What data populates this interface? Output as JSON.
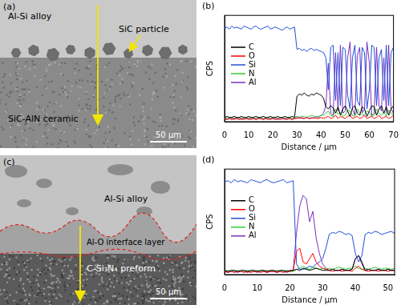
{
  "images": [
    {
      "label": "(a)",
      "matrix": "Al-Si alloy",
      "particle": "SiC particle",
      "substrate": "SiC-AlN ceramic",
      "scale_bar": "50 μm"
    },
    {
      "label": "(c)",
      "matrix": "Al-Si alloy",
      "interface": "Al-O interface layer",
      "substrate": "C-Si₃N₄ preform",
      "scale_bar": "50 μm"
    }
  ],
  "chart_data": [
    {
      "type": "line",
      "title": "(b)",
      "x_label": "Distance / μm",
      "y_label": "CPS",
      "xlim": [
        0,
        70
      ],
      "xticks": [
        0,
        10,
        20,
        30,
        40,
        50,
        60,
        70
      ],
      "ylim": [
        0,
        100
      ],
      "grid": false,
      "legend": "left",
      "tick_labels": "x",
      "x": [
        0,
        1,
        2,
        3,
        4,
        5,
        6,
        7,
        8,
        9,
        10,
        11,
        12,
        13,
        14,
        15,
        16,
        17,
        18,
        19,
        20,
        21,
        22,
        23,
        24,
        25,
        26,
        27,
        28,
        29,
        30,
        31,
        32,
        33,
        34,
        35,
        36,
        37,
        38,
        39,
        40,
        41,
        42,
        43,
        44,
        45,
        46,
        47,
        48,
        49,
        50,
        51,
        52,
        53,
        54,
        55,
        56,
        57,
        58,
        59,
        60,
        61,
        62,
        63,
        64,
        65,
        66,
        67,
        68,
        69,
        70
      ],
      "series": [
        {
          "name": "C",
          "color": "#000000",
          "values": [
            4,
            5,
            4,
            4,
            5,
            4,
            4,
            5,
            4,
            4,
            5,
            4,
            4,
            5,
            4,
            4,
            5,
            4,
            4,
            5,
            4,
            4,
            5,
            4,
            4,
            5,
            4,
            4,
            5,
            4,
            24,
            26,
            25,
            27,
            25,
            24,
            26,
            25,
            27,
            26,
            25,
            22,
            14,
            12,
            15,
            13,
            8,
            14,
            6,
            12,
            15,
            10,
            5,
            13,
            15,
            8,
            6,
            14,
            12,
            5,
            10,
            15,
            14,
            6,
            12,
            15,
            8,
            14,
            6,
            12,
            15
          ]
        },
        {
          "name": "O",
          "color": "#ff0000",
          "values": [
            3,
            2,
            3,
            2,
            3,
            3,
            2,
            3,
            2,
            3,
            3,
            2,
            3,
            2,
            3,
            3,
            2,
            3,
            2,
            3,
            3,
            2,
            3,
            2,
            3,
            3,
            2,
            3,
            2,
            3,
            3,
            4,
            3,
            3,
            4,
            3,
            3,
            4,
            3,
            3,
            4,
            3,
            4,
            5,
            3,
            4,
            6,
            3,
            5,
            4,
            3,
            5,
            6,
            3,
            4,
            5,
            3,
            4,
            6,
            3,
            4,
            5,
            3,
            4,
            6,
            3,
            4,
            5,
            3,
            4,
            6
          ]
        },
        {
          "name": "Si",
          "color": "#1f4fd8",
          "values": [
            88,
            89,
            87,
            90,
            88,
            89,
            88,
            87,
            90,
            89,
            88,
            87,
            89,
            90,
            88,
            87,
            88,
            89,
            90,
            87,
            88,
            89,
            88,
            87,
            86,
            88,
            89,
            87,
            88,
            89,
            68,
            69,
            67,
            68,
            66,
            68,
            69,
            67,
            68,
            67,
            66,
            65,
            60,
            30,
            70,
            72,
            20,
            65,
            15,
            70,
            68,
            25,
            12,
            60,
            72,
            20,
            15,
            70,
            65,
            12,
            30,
            72,
            70,
            15,
            60,
            68,
            20,
            72,
            15,
            65,
            70
          ]
        },
        {
          "name": "N",
          "color": "#33cc33",
          "values": [
            4,
            3,
            4,
            4,
            3,
            4,
            4,
            3,
            4,
            4,
            3,
            4,
            4,
            3,
            4,
            4,
            3,
            4,
            4,
            3,
            4,
            4,
            3,
            4,
            4,
            3,
            4,
            4,
            3,
            4,
            5,
            4,
            5,
            5,
            4,
            5,
            6,
            5,
            4,
            5,
            6,
            6,
            8,
            10,
            6,
            5,
            12,
            7,
            9,
            5,
            6,
            11,
            10,
            6,
            5,
            12,
            8,
            6,
            7,
            10,
            9,
            5,
            6,
            12,
            8,
            6,
            9,
            5,
            11,
            8,
            7
          ]
        },
        {
          "name": "Al",
          "color": "#7b2fbf",
          "values": [
            3,
            2,
            3,
            3,
            2,
            3,
            3,
            2,
            3,
            3,
            2,
            3,
            3,
            2,
            3,
            3,
            2,
            3,
            3,
            2,
            3,
            3,
            2,
            3,
            3,
            2,
            3,
            3,
            2,
            3,
            4,
            3,
            4,
            3,
            4,
            3,
            4,
            3,
            5,
            4,
            6,
            8,
            15,
            55,
            8,
            6,
            65,
            10,
            72,
            8,
            10,
            60,
            75,
            12,
            6,
            62,
            70,
            8,
            12,
            75,
            55,
            6,
            8,
            70,
            15,
            10,
            60,
            8,
            72,
            12,
            8
          ]
        }
      ]
    },
    {
      "type": "line",
      "title": "(d)",
      "x_label": "Distance / μm",
      "y_label": "CPS",
      "xlim": [
        0,
        52
      ],
      "xticks": [
        0,
        10,
        20,
        30,
        40,
        50
      ],
      "ylim": [
        0,
        100
      ],
      "grid": false,
      "legend": "left",
      "tick_labels": "x",
      "x": [
        0,
        1,
        2,
        3,
        4,
        5,
        6,
        7,
        8,
        9,
        10,
        11,
        12,
        13,
        14,
        15,
        16,
        17,
        18,
        19,
        20,
        21,
        22,
        23,
        24,
        25,
        26,
        27,
        28,
        29,
        30,
        31,
        32,
        33,
        34,
        35,
        36,
        37,
        38,
        39,
        40,
        41,
        42,
        43,
        44,
        45,
        46,
        47,
        48,
        49,
        50,
        51,
        52
      ],
      "series": [
        {
          "name": "C",
          "color": "#000000",
          "values": [
            4,
            3,
            4,
            4,
            3,
            4,
            4,
            3,
            4,
            4,
            3,
            4,
            4,
            3,
            4,
            4,
            3,
            4,
            4,
            3,
            4,
            4,
            5,
            4,
            6,
            5,
            4,
            5,
            6,
            5,
            4,
            4,
            4,
            5,
            4,
            4,
            5,
            4,
            4,
            5,
            15,
            18,
            12,
            4,
            5,
            4,
            4,
            5,
            4,
            4,
            5,
            4,
            4
          ]
        },
        {
          "name": "O",
          "color": "#ff0000",
          "values": [
            3,
            2,
            3,
            2,
            3,
            3,
            2,
            3,
            2,
            3,
            3,
            2,
            3,
            2,
            3,
            3,
            2,
            3,
            2,
            3,
            3,
            4,
            22,
            25,
            12,
            10,
            15,
            20,
            12,
            8,
            6,
            5,
            4,
            3,
            4,
            4,
            3,
            4,
            4,
            3,
            6,
            8,
            5,
            4,
            3,
            4,
            4,
            3,
            4,
            4,
            3,
            4,
            4
          ]
        },
        {
          "name": "Si",
          "color": "#1f4fd8",
          "values": [
            88,
            89,
            87,
            90,
            88,
            89,
            88,
            87,
            90,
            89,
            88,
            87,
            89,
            90,
            88,
            87,
            88,
            89,
            90,
            87,
            88,
            89,
            10,
            5,
            5,
            6,
            8,
            7,
            10,
            12,
            15,
            25,
            38,
            40,
            39,
            41,
            40,
            38,
            39,
            37,
            20,
            12,
            18,
            38,
            40,
            39,
            41,
            40,
            38,
            39,
            40,
            41,
            39
          ]
        },
        {
          "name": "N",
          "color": "#33cc33",
          "values": [
            3,
            4,
            3,
            3,
            4,
            3,
            3,
            4,
            3,
            3,
            4,
            3,
            3,
            4,
            3,
            3,
            4,
            3,
            3,
            4,
            3,
            3,
            5,
            6,
            8,
            6,
            5,
            7,
            6,
            5,
            6,
            5,
            6,
            5,
            6,
            7,
            6,
            5,
            6,
            6,
            8,
            6,
            5,
            6,
            5,
            6,
            7,
            6,
            5,
            6,
            6,
            5,
            6
          ]
        },
        {
          "name": "Al",
          "color": "#7b2fbf",
          "values": [
            3,
            2,
            3,
            3,
            2,
            3,
            3,
            2,
            3,
            3,
            2,
            3,
            3,
            2,
            3,
            3,
            2,
            3,
            3,
            2,
            3,
            4,
            40,
            65,
            75,
            72,
            50,
            60,
            35,
            20,
            10,
            6,
            4,
            5,
            4,
            4,
            5,
            4,
            4,
            5,
            15,
            18,
            10,
            4,
            5,
            4,
            4,
            5,
            4,
            4,
            5,
            4,
            4
          ]
        }
      ]
    }
  ]
}
